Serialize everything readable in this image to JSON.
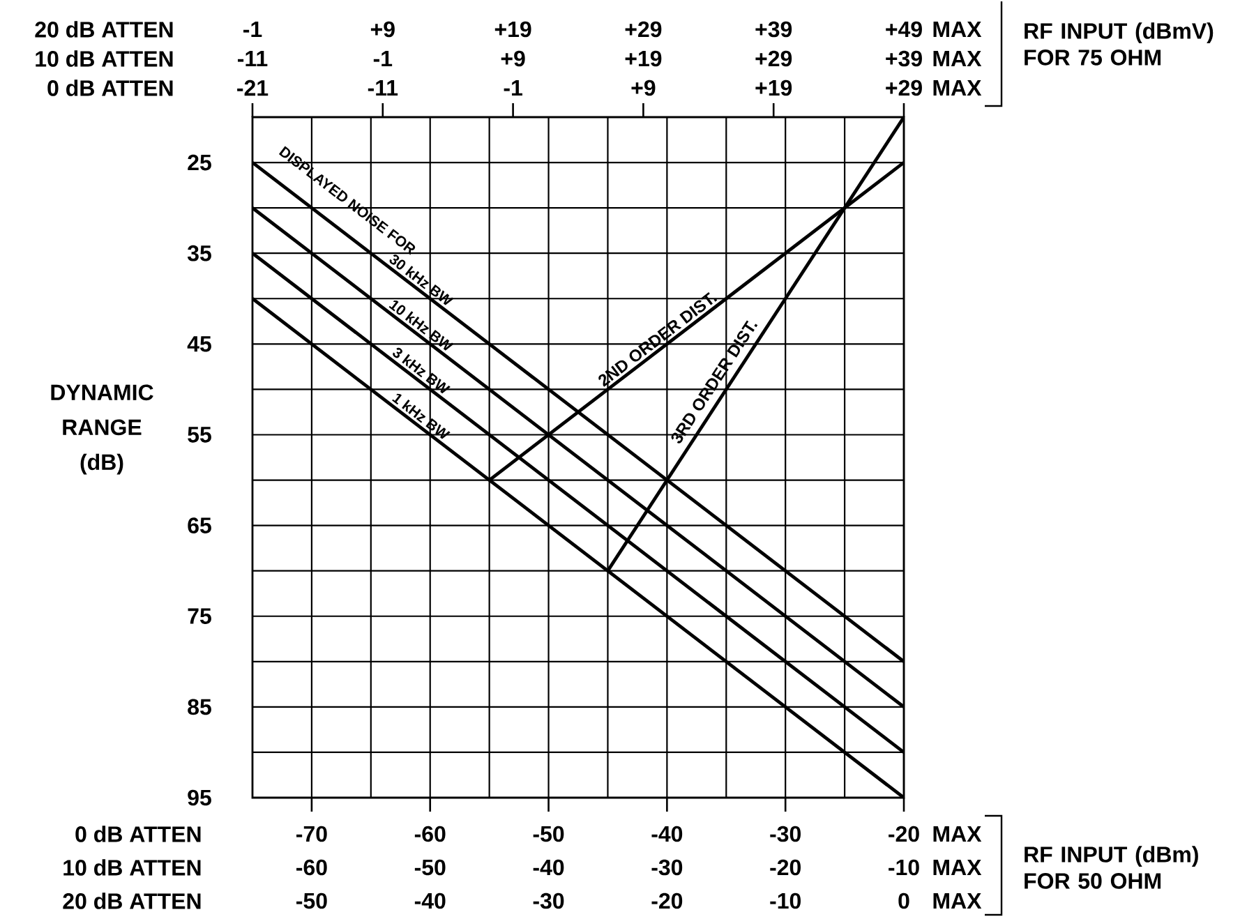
{
  "chart_data": {
    "type": "line",
    "xlabel": "RF INPUT (dBm) FOR 50 OHM",
    "x2label": "RF INPUT (dBmV) FOR 75 OHM",
    "ylabel": "DYNAMIC RANGE (dB)",
    "annotations": [
      "DISPLAYED NOISE FOR",
      "20 dB ATTEN",
      "-1",
      "+9",
      "+19",
      "+29",
      "+39",
      "+49",
      "MAX",
      "10 dB ATTEN",
      "-11",
      "-1",
      "+9",
      "+19",
      "+29",
      "+39",
      "MAX",
      "0 dB ATTEN",
      "MAX",
      "0 dB ATTEN",
      "MAX",
      "10 dB ATTEN",
      "-60",
      "-50",
      "-40",
      "-30",
      "-20",
      "-10",
      "MAX",
      "20 dB ATTEN",
      "-50",
      "-40",
      "-30",
      "-20",
      "-10",
      "0",
      "MAX"
    ],
    "xlim": [
      -75,
      -20
    ],
    "xticks": [
      -70,
      {
        "value": -65,
        "label": null
      },
      -60,
      {
        "value": -55,
        "label": null
      },
      -50,
      {
        "value": -45,
        "label": null
      },
      -40,
      {
        "value": -35,
        "label": null
      },
      -30,
      {
        "value": -25,
        "label": null
      },
      -20
    ],
    "x2lim": [
      -21,
      29
    ],
    "x2ticks": [
      -21,
      -11,
      -1,
      {
        "value": 9,
        "label": "+9"
      },
      {
        "value": 19,
        "label": "+19"
      },
      {
        "value": 29,
        "label": "+29"
      }
    ],
    "ylim": [
      95,
      20
    ],
    "yticks": [
      25,
      {
        "value": 30,
        "label": null
      },
      35,
      {
        "value": 40,
        "label": null
      },
      45,
      {
        "value": 50,
        "label": null
      },
      55,
      {
        "value": 60,
        "label": null
      },
      65,
      {
        "value": 70,
        "label": null
      },
      75,
      {
        "value": 80,
        "label": null
      },
      85,
      {
        "value": 90,
        "label": null
      },
      95
    ],
    "grid": true,
    "series": [
      {
        "name": "30 kHz BW",
        "color": "#000000",
        "x": [
          -75,
          -20
        ],
        "values": [
          25,
          80
        ]
      },
      {
        "name": "10 kHz BW",
        "color": "#000000",
        "x": [
          -75,
          -20
        ],
        "values": [
          30,
          85
        ]
      },
      {
        "name": "3 kHz BW",
        "color": "#000000",
        "x": [
          -75,
          -20
        ],
        "values": [
          35,
          90
        ]
      },
      {
        "name": "1 kHz BW",
        "color": "#000000",
        "x": [
          -75,
          -20
        ],
        "values": [
          40,
          95
        ]
      },
      {
        "name": "2ND ORDER DIST.",
        "color": "#000000",
        "x": [
          -55,
          -20
        ],
        "values": [
          60,
          25
        ]
      },
      {
        "name": "3RD ORDER DIST.",
        "color": "#000000",
        "x": [
          -45,
          -20
        ],
        "values": [
          70,
          20
        ]
      }
    ]
  }
}
